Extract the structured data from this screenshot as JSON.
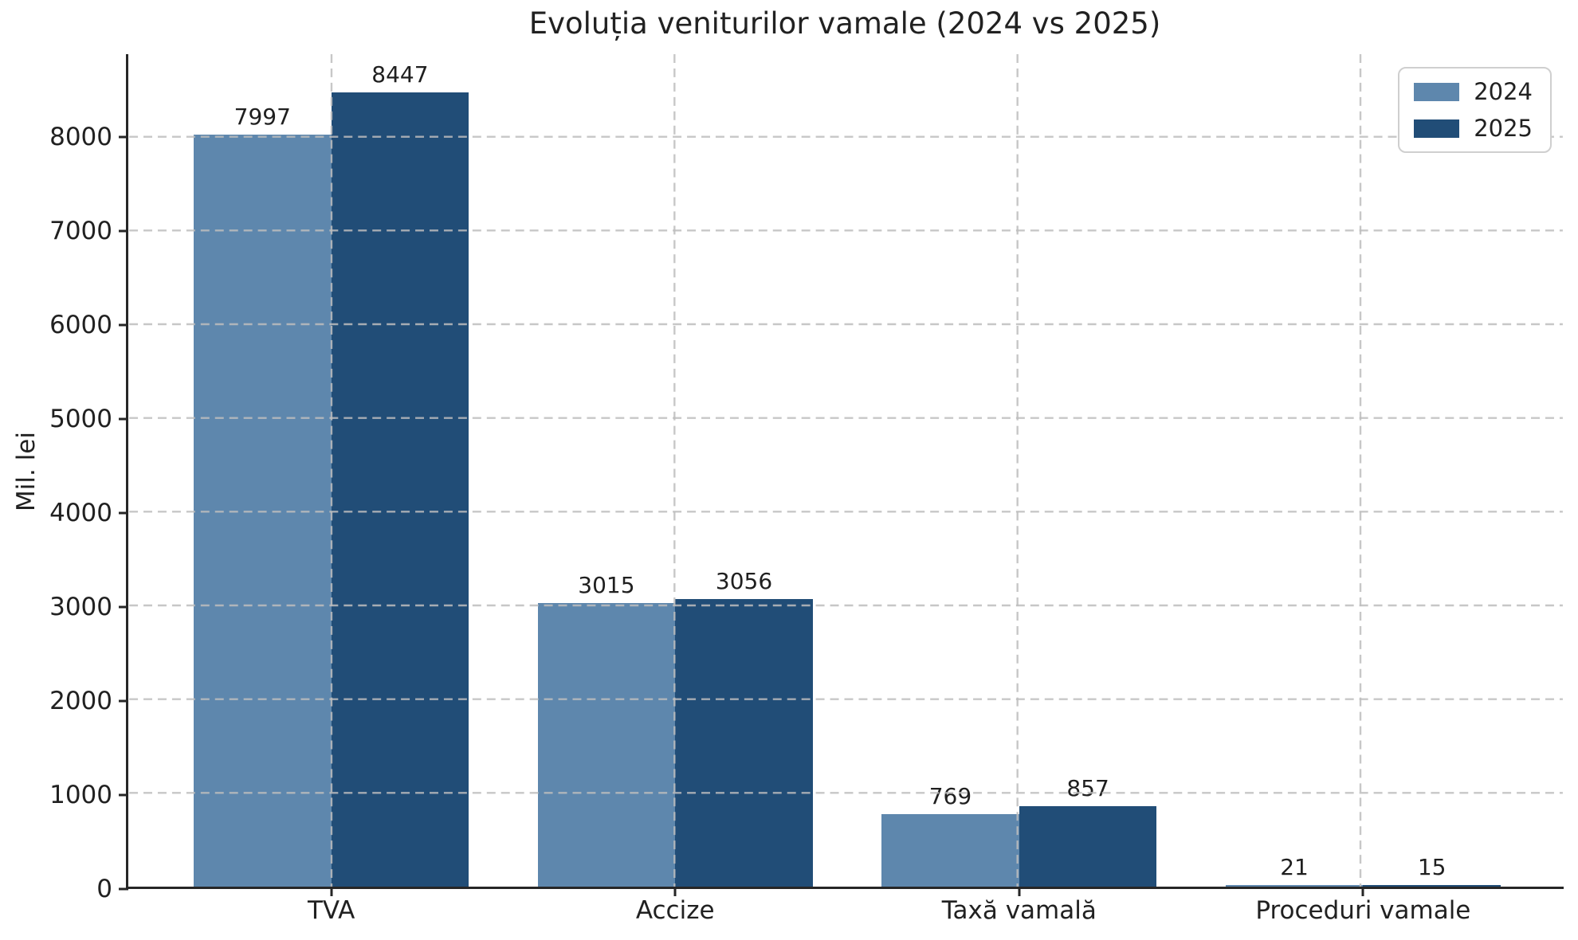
{
  "chart_data": {
    "type": "bar",
    "title": "Evoluția veniturilor vamale (2024 vs 2025)",
    "ylabel": "Mil. lei",
    "xlabel": "",
    "categories": [
      "TVA",
      "Accize",
      "Taxă vamală",
      "Proceduri vamale"
    ],
    "series": [
      {
        "name": "2024",
        "color": "#5e87ad",
        "values": [
          7997,
          3015,
          769,
          21
        ]
      },
      {
        "name": "2025",
        "color": "#214d77",
        "values": [
          8447,
          3056,
          857,
          15
        ]
      }
    ],
    "yticks": [
      0,
      1000,
      2000,
      3000,
      4000,
      5000,
      6000,
      7000,
      8000
    ],
    "ylim": [
      0,
      8881
    ],
    "grid": "dashed-both-on-top",
    "legend_position": "upper-right",
    "colors": {
      "text": "#212121",
      "spine": "#262626",
      "gridline": "#bdbdbd",
      "legend_border": "#cfcfcf",
      "background": "#ffffff"
    }
  }
}
